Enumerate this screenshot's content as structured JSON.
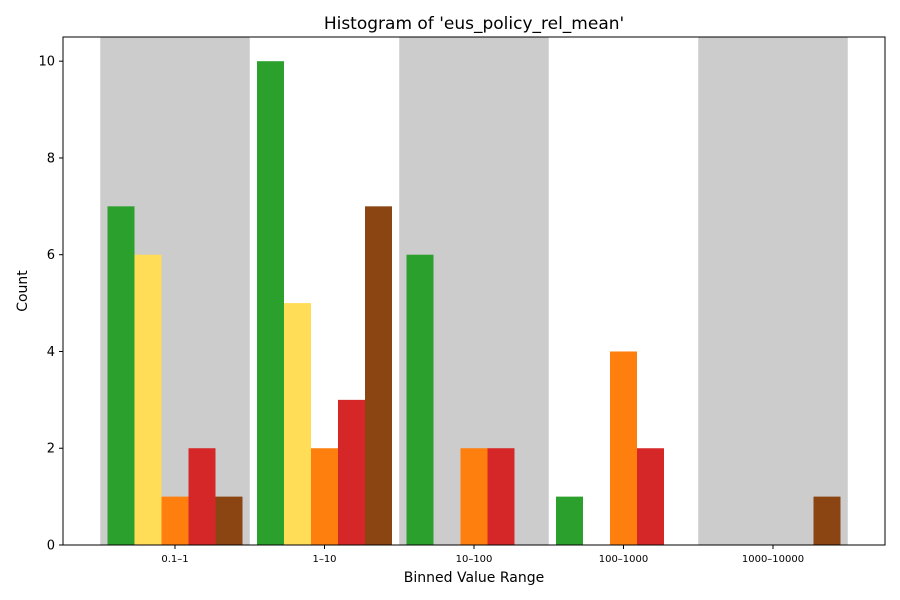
{
  "chart_data": {
    "type": "bar",
    "title": "Histogram of 'eus_policy_rel_mean'",
    "xlabel": "Binned Value Range",
    "ylabel": "Count",
    "ylim": [
      0,
      10.5
    ],
    "yticks": [
      0,
      2,
      4,
      6,
      8,
      10
    ],
    "grid": false,
    "categories": [
      "0.1–1",
      "1–10",
      "10–100",
      "100–1000",
      "1000–10000"
    ],
    "shaded_bins": [
      0,
      2,
      4
    ],
    "colors": {
      "band": "#cccccc"
    },
    "series": [
      {
        "color": "#2ca02c",
        "values": [
          7,
          10,
          6,
          1,
          0
        ]
      },
      {
        "color": "#ffdd57",
        "values": [
          6,
          5,
          0,
          0,
          0
        ]
      },
      {
        "color": "#ff7f0e",
        "values": [
          1,
          2,
          2,
          4,
          0
        ]
      },
      {
        "color": "#d62728",
        "values": [
          2,
          3,
          2,
          2,
          0
        ]
      },
      {
        "color": "#8b4513",
        "values": [
          1,
          7,
          0,
          0,
          1
        ]
      }
    ]
  }
}
